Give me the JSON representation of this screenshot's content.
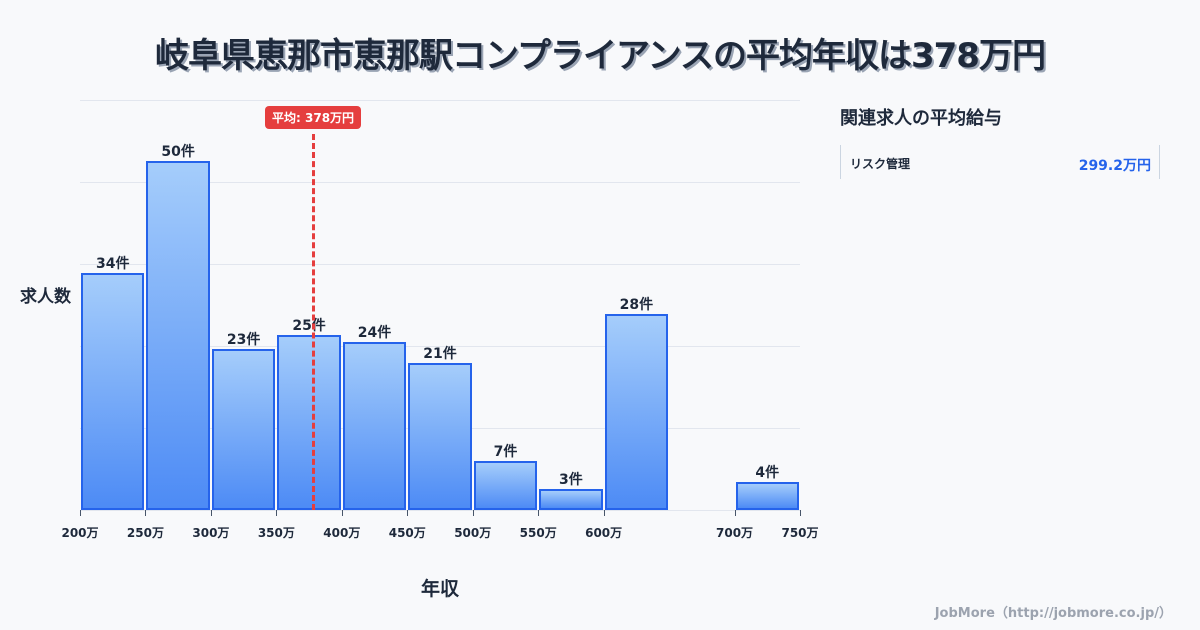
{
  "title": "岐阜県恵那市恵那駅コンプライアンスの平均年収は378万円",
  "chart_data": {
    "type": "bar",
    "title": "岐阜県恵那市恵那駅コンプライアンスの平均年収は378万円",
    "xlabel": "年収",
    "ylabel": "求人数",
    "x_unit": "万",
    "bins": [
      {
        "start": 200,
        "end": 250,
        "count": 34,
        "label": "34件"
      },
      {
        "start": 250,
        "end": 300,
        "count": 50,
        "label": "50件"
      },
      {
        "start": 300,
        "end": 350,
        "count": 23,
        "label": "23件"
      },
      {
        "start": 350,
        "end": 400,
        "count": 25,
        "label": "25件"
      },
      {
        "start": 400,
        "end": 450,
        "count": 24,
        "label": "24件"
      },
      {
        "start": 450,
        "end": 500,
        "count": 21,
        "label": "21件"
      },
      {
        "start": 500,
        "end": 550,
        "count": 7,
        "label": "7件"
      },
      {
        "start": 550,
        "end": 600,
        "count": 3,
        "label": "3件"
      },
      {
        "start": 600,
        "end": 650,
        "count": 28,
        "label": "28件"
      },
      {
        "start": 700,
        "end": 750,
        "count": 4,
        "label": "4件"
      }
    ],
    "categories": [
      "200-250万",
      "250-300万",
      "300-350万",
      "350-400万",
      "400-450万",
      "450-500万",
      "500-550万",
      "550-600万",
      "600-650万",
      "700-750万"
    ],
    "values": [
      34,
      50,
      23,
      25,
      24,
      21,
      7,
      3,
      28,
      4
    ],
    "x_ticks": [
      "200万",
      "250万",
      "300万",
      "350万",
      "400万",
      "450万",
      "500万",
      "550万",
      "600万",
      "700万",
      "750万"
    ],
    "x_tick_values": [
      200,
      250,
      300,
      350,
      400,
      450,
      500,
      550,
      600,
      700,
      750
    ],
    "xlim": [
      200,
      750
    ],
    "ylim": [
      0,
      58.7
    ],
    "grid": true,
    "mean_line": {
      "value": 378,
      "label": "平均: 378万円",
      "color": "#e53e3e"
    },
    "bar_color": "#4d8bf5",
    "bar_border_color": "#2563eb"
  },
  "sidebar": {
    "title": "関連求人の平均給与",
    "items": [
      {
        "name": "リスク管理",
        "value": "299.2万円"
      }
    ]
  },
  "footer": "JobMore（http://jobmore.co.jp/）"
}
